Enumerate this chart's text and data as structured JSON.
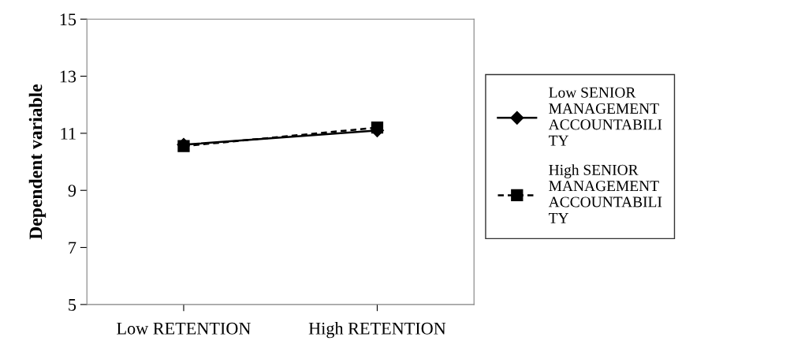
{
  "chart_data": {
    "type": "line",
    "ylabel": "Dependent variable",
    "categories": [
      "Low RETENTION",
      "High RETENTION"
    ],
    "series": [
      {
        "name": "Low SENIOR MANAGEMENT ACCOUNTABILITY",
        "color": "#000000",
        "values": [
          10.6,
          11.1
        ],
        "marker": "diamond",
        "line_style": "solid"
      },
      {
        "name": "High SENIOR MANAGEMENT ACCOUNTABILITY",
        "color": "#000000",
        "values": [
          10.55,
          11.2
        ],
        "marker": "square",
        "line_style": "dashed"
      }
    ],
    "ylim": [
      5,
      15
    ],
    "yticks": [
      5,
      7,
      9,
      11,
      13,
      15
    ],
    "grid": false,
    "legend": "right"
  }
}
